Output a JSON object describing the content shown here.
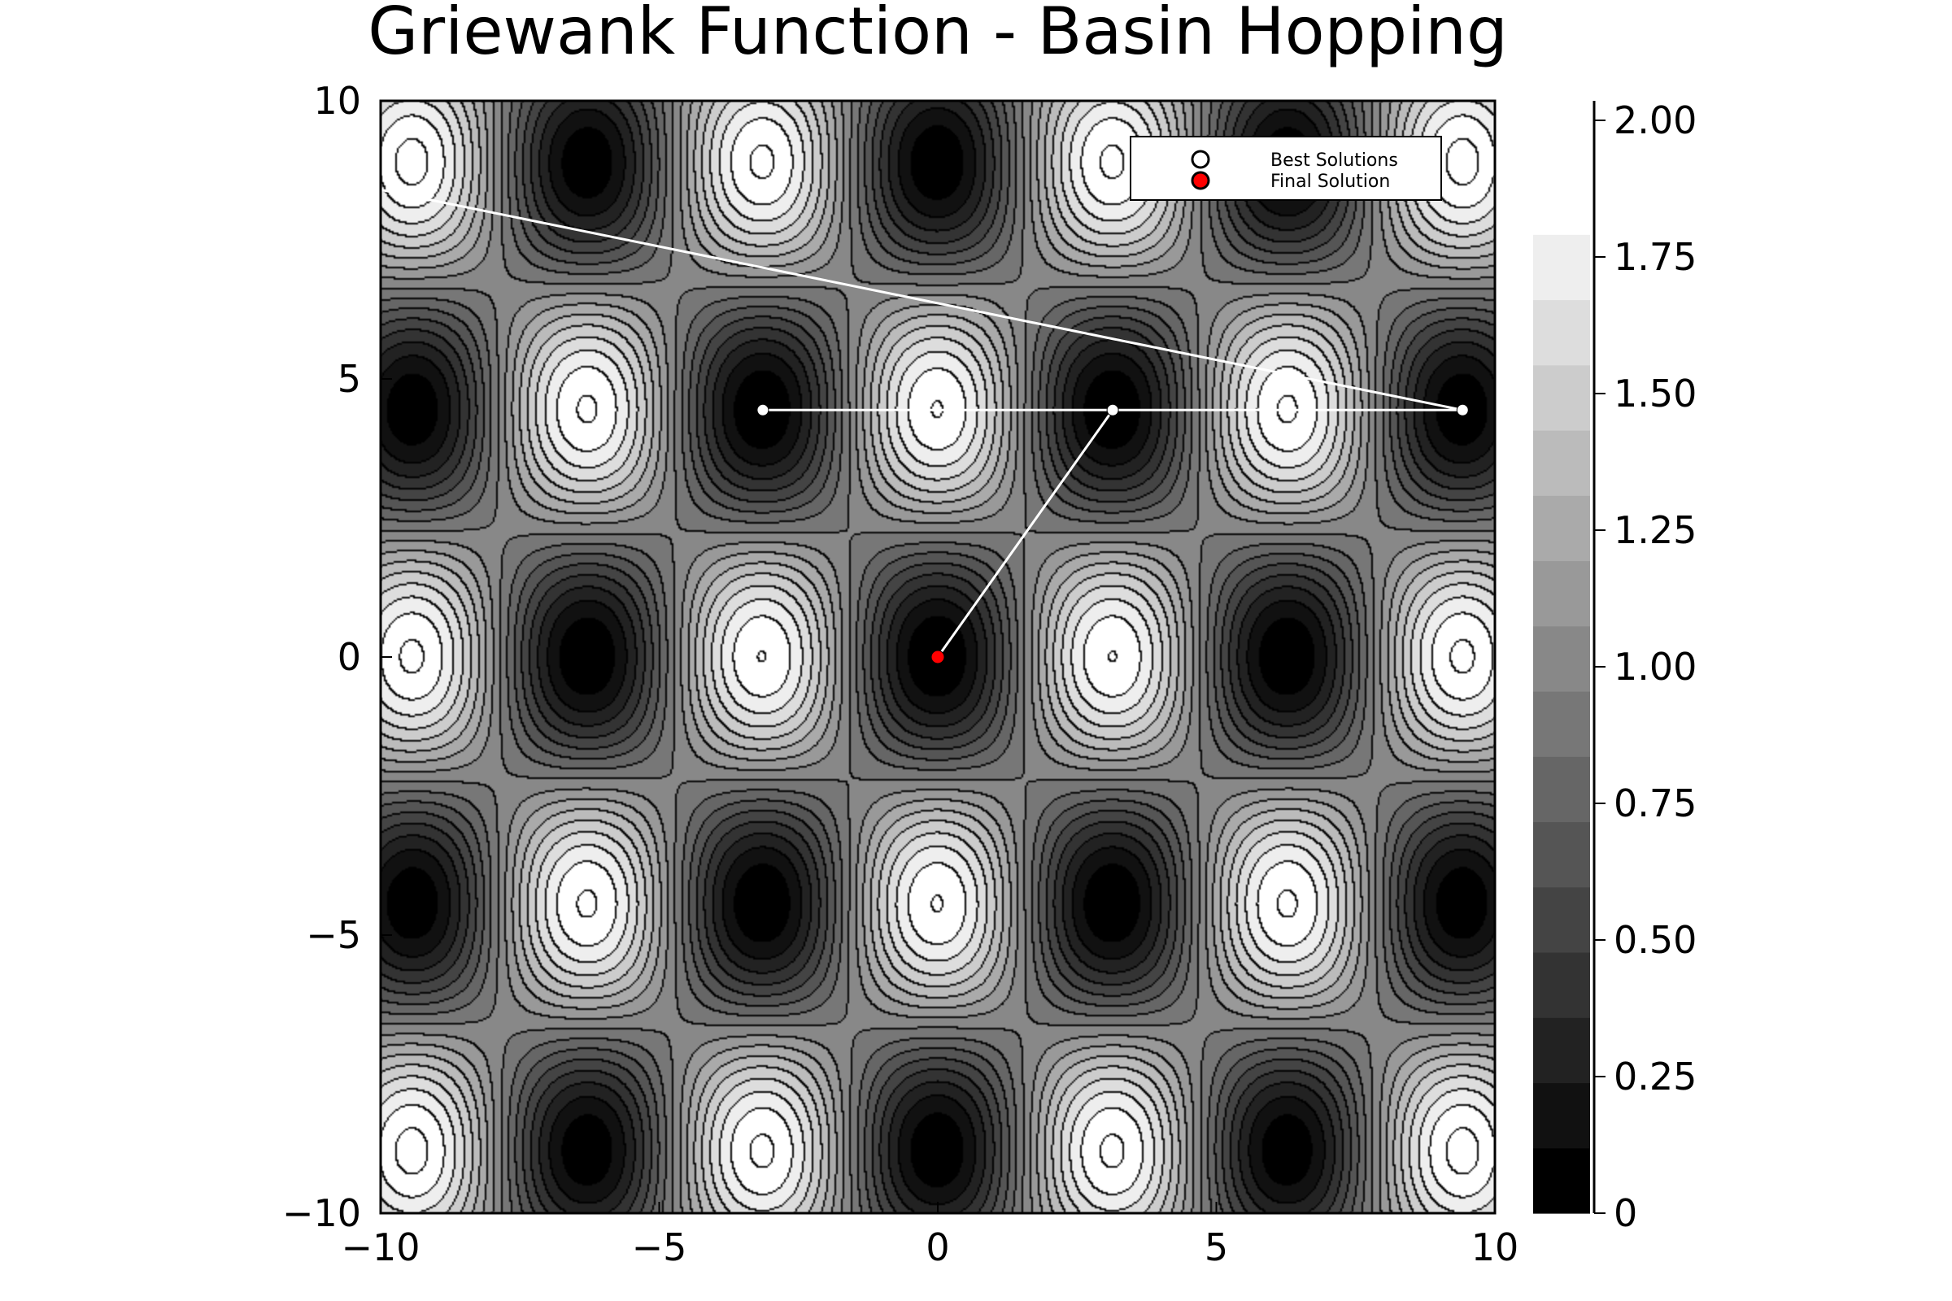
{
  "chart_data": {
    "type": "contour",
    "title": "Griewank Function - Basin Hopping",
    "xlabel": "",
    "ylabel": "",
    "xlim": [
      -10,
      10
    ],
    "ylim": [
      -10,
      10
    ],
    "x_ticks": [
      -10,
      -5,
      0,
      5,
      10
    ],
    "y_ticks": [
      -10,
      -5,
      0,
      5,
      10
    ],
    "x_tick_labels": [
      "−10",
      "−5",
      "0",
      "5",
      "10"
    ],
    "y_tick_labels": [
      "−10",
      "−5",
      "0",
      "5",
      "10"
    ],
    "colorbar": {
      "range": [
        0,
        2.0
      ],
      "levels": 16,
      "ticks": [
        0,
        0.25,
        0.5,
        0.75,
        1.0,
        1.25,
        1.5,
        1.75,
        2.0
      ],
      "tick_labels": [
        "0",
        "0.25",
        "0.50",
        "0.75",
        "1.00",
        "1.25",
        "1.50",
        "1.75",
        "2.00"
      ]
    },
    "colormap": [
      "#000000",
      "#ffffff"
    ],
    "grid": false,
    "legend_position": "top-right",
    "series": [
      {
        "name": "Best Solutions",
        "type": "line+scatter",
        "color": "#ffffff",
        "points": [
          [
            -10.0,
            8.4
          ],
          [
            9.42,
            4.44
          ],
          [
            6.28,
            4.44
          ],
          [
            3.14,
            4.44
          ],
          [
            -3.14,
            4.44
          ],
          [
            0.0,
            4.44
          ],
          [
            3.14,
            4.44
          ],
          [
            0.0,
            0.0
          ]
        ],
        "markers": [
          [
            -3.14,
            4.44
          ],
          [
            3.14,
            4.44
          ],
          [
            9.42,
            4.44
          ]
        ]
      },
      {
        "name": "Final Solution",
        "type": "scatter",
        "color": "#ff0000",
        "points": [
          [
            0.0,
            0.0
          ]
        ]
      }
    ]
  }
}
